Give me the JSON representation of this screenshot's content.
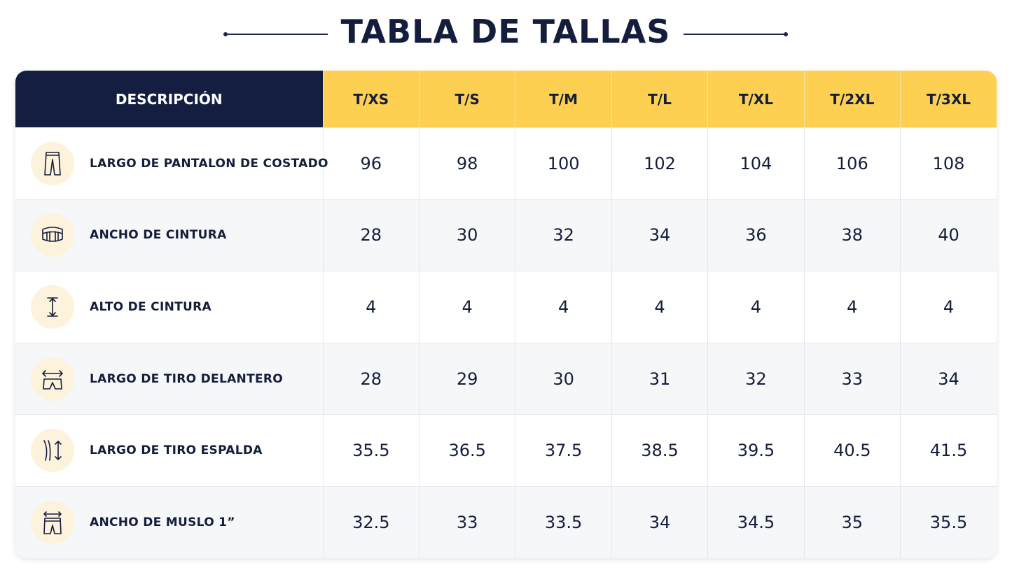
{
  "title": "TABLA DE TALLAS",
  "header": {
    "description": "DESCRIPCIÓN",
    "sizes": [
      "T/XS",
      "T/S",
      "T/M",
      "T/L",
      "T/XL",
      "T/2XL",
      "T/3XL"
    ]
  },
  "rows": [
    {
      "icon": "pants-side-length-icon",
      "label": "LARGO DE PANTALON DE COSTADO",
      "values": [
        "96",
        "98",
        "100",
        "102",
        "104",
        "106",
        "108"
      ]
    },
    {
      "icon": "waist-width-icon",
      "label": "ANCHO DE CINTURA",
      "values": [
        "28",
        "30",
        "32",
        "34",
        "36",
        "38",
        "40"
      ]
    },
    {
      "icon": "waist-height-icon",
      "label": "ALTO DE CINTURA",
      "values": [
        "4",
        "4",
        "4",
        "4",
        "4",
        "4",
        "4"
      ]
    },
    {
      "icon": "front-rise-icon",
      "label": "LARGO DE TIRO DELANTERO",
      "values": [
        "28",
        "29",
        "30",
        "31",
        "32",
        "33",
        "34"
      ]
    },
    {
      "icon": "back-rise-icon",
      "label": "LARGO DE TIRO ESPALDA",
      "values": [
        "35.5",
        "36.5",
        "37.5",
        "38.5",
        "39.5",
        "40.5",
        "41.5"
      ]
    },
    {
      "icon": "thigh-width-icon",
      "label": "ANCHO DE MUSLO 1”",
      "values": [
        "32.5",
        "33",
        "33.5",
        "34",
        "34.5",
        "35",
        "35.5"
      ]
    }
  ],
  "colors": {
    "navy": "#131e40",
    "yellow": "#fdd052",
    "icon_bg": "#fdf2dc",
    "row_alt": "#f6f7f9"
  }
}
